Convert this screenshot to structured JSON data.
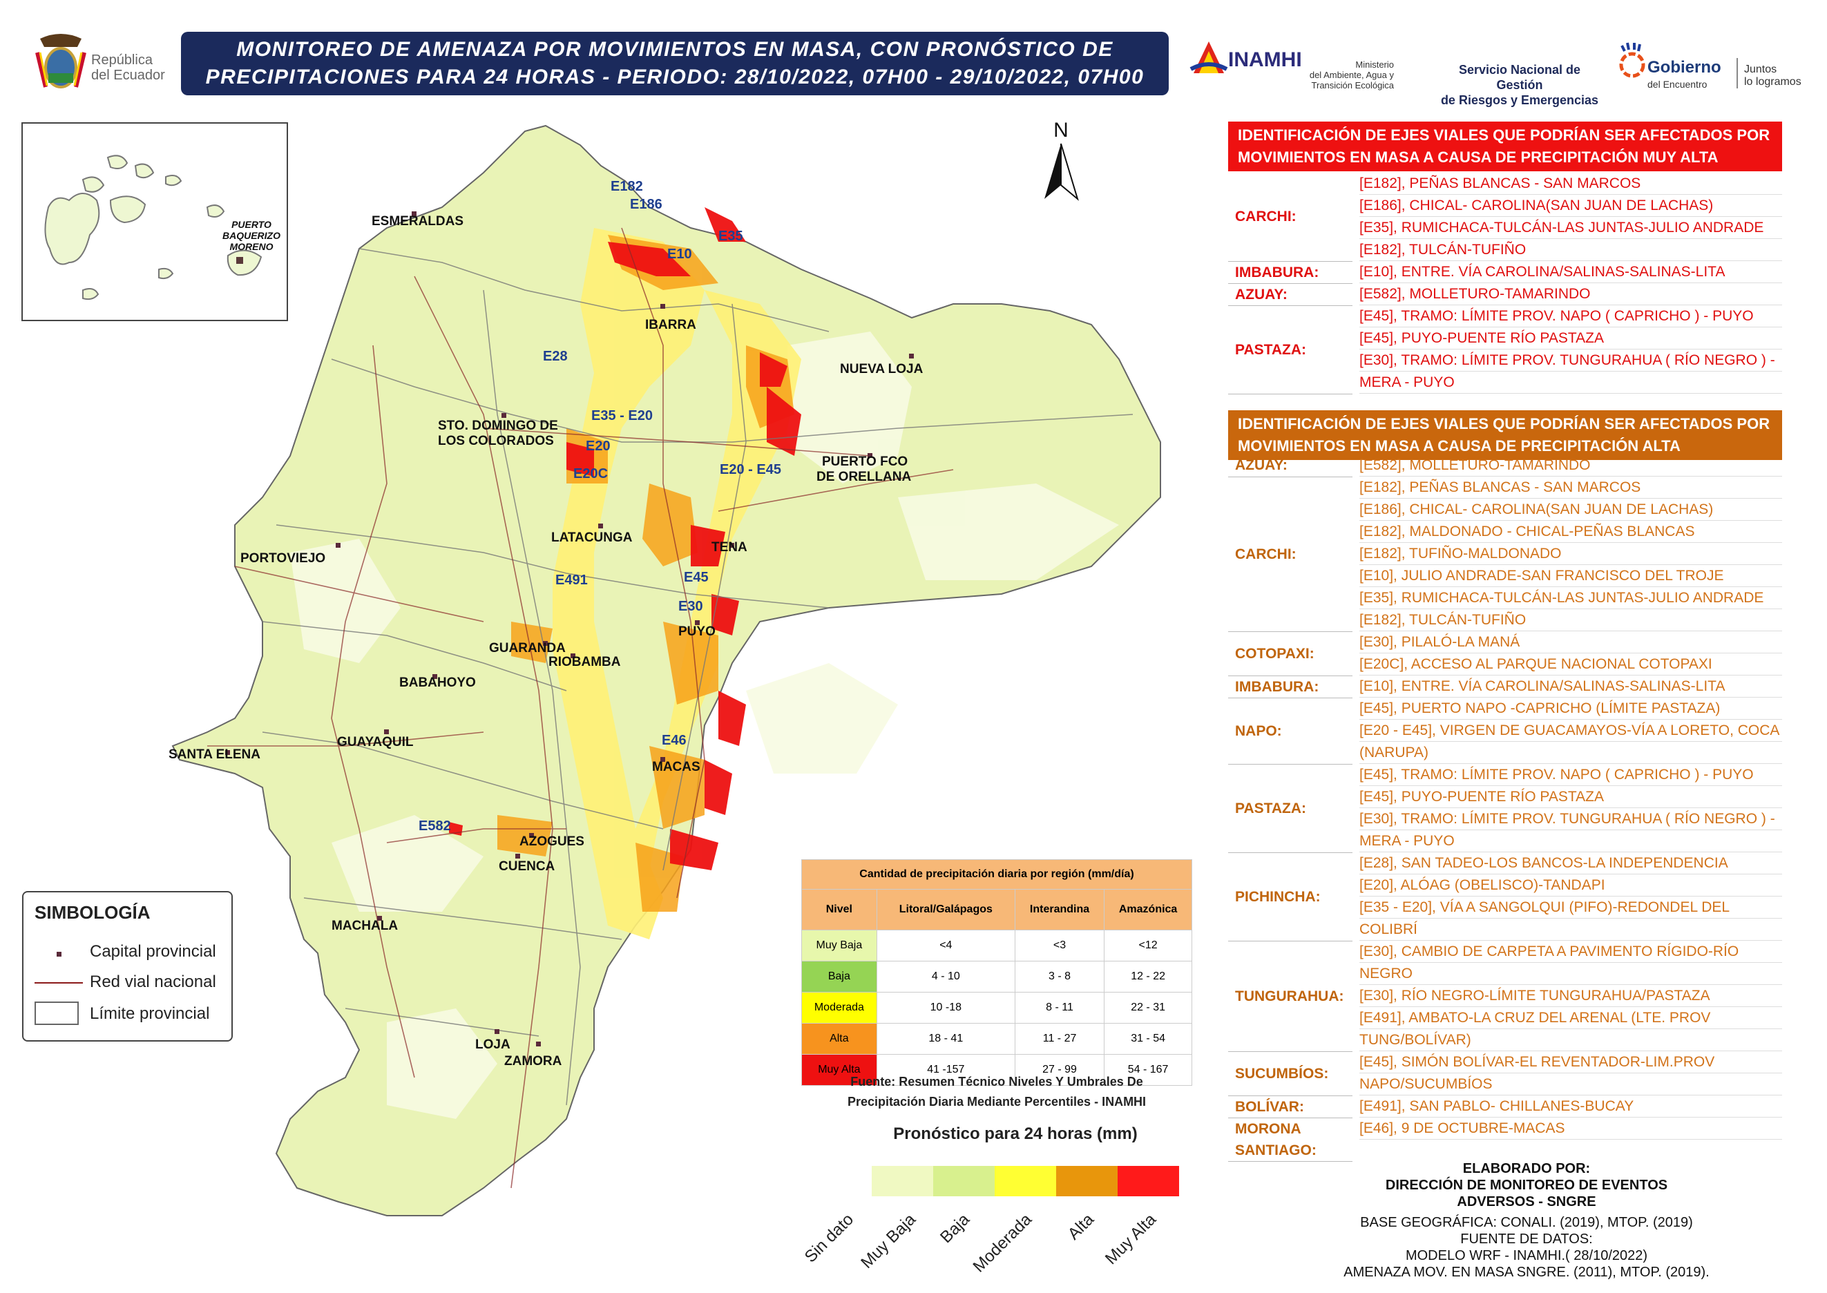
{
  "header": {
    "title_line1": "MONITOREO DE AMENAZA POR MOVIMIENTOS EN MASA, CON PRONÓSTICO DE",
    "title_line2": "PRECIPITACIONES PARA 24 HORAS - PERIODO: 28/10/2022, 07H00 - 29/10/2022, 07H00"
  },
  "logos": {
    "ecuador": [
      "República",
      "del Ecuador"
    ],
    "inamhi": "INAMHI",
    "ministerio": [
      "Ministerio",
      "del Ambiente, Agua y",
      "Transición Ecológica"
    ],
    "sngre": [
      "Servicio Nacional de Gestión",
      "de Riesgos y Emergencias"
    ],
    "gobierno": "Gobierno",
    "gobierno_sub": "del Encuentro",
    "juntos": [
      "Juntos",
      "lo logramos"
    ]
  },
  "map": {
    "north": "N",
    "cities": [
      {
        "name": "ESMERALDAS"
      },
      {
        "name": "IBARRA"
      },
      {
        "name": "NUEVA LOJA"
      },
      {
        "name": "STO. DOMINGO DE"
      },
      {
        "name": "LOS COLORADOS"
      },
      {
        "name": "PUERTO FCO"
      },
      {
        "name": "DE ORELLANA"
      },
      {
        "name": "LATACUNGA"
      },
      {
        "name": "TENA"
      },
      {
        "name": "PORTOVIEJO"
      },
      {
        "name": "PUYO"
      },
      {
        "name": "GUARANDA"
      },
      {
        "name": "RIOBAMBA"
      },
      {
        "name": "BABAHOYO"
      },
      {
        "name": "SANTA ELENA"
      },
      {
        "name": "GUAYAQUIL"
      },
      {
        "name": "MACAS"
      },
      {
        "name": "AZOGUES"
      },
      {
        "name": "CUENCA"
      },
      {
        "name": "MACHALA"
      },
      {
        "name": "LOJA"
      },
      {
        "name": "ZAMORA"
      },
      {
        "name": "PUERTO"
      },
      {
        "name": "BAQUERIZO"
      },
      {
        "name": "MORENO"
      }
    ],
    "roads": [
      "E182",
      "E186",
      "E35",
      "E10",
      "E28",
      "E35 - E20",
      "E20",
      "E20C",
      "E20 - E45",
      "E491",
      "E45",
      "E30",
      "E46",
      "E582"
    ]
  },
  "muy_alta": {
    "header": "IDENTIFICACIÓN DE EJES VIALES QUE PODRÍAN SER AFECTADOS POR MOVIMIENTOS EN MASA A CAUSA DE  PRECIPITACIÓN MUY ALTA",
    "groups": [
      {
        "province": "CARCHI:",
        "roads": [
          "[E182], PEÑAS BLANCAS - SAN MARCOS",
          "[E186], CHICAL- CAROLINA(SAN JUAN DE LACHAS)",
          "[E35], RUMICHACA-TULCÁN-LAS JUNTAS-JULIO ANDRADE",
          "[E182], TULCÁN-TUFIÑO"
        ]
      },
      {
        "province": "IMBABURA:",
        "roads": [
          "[E10], ENTRE. VÍA CAROLINA/SALINAS-SALINAS-LITA"
        ]
      },
      {
        "province": "AZUAY:",
        "roads": [
          "[E582], MOLLETURO-TAMARINDO"
        ]
      },
      {
        "province": "PASTAZA:",
        "roads": [
          "[E45], TRAMO: LÍMITE PROV. NAPO ( CAPRICHO ) - PUYO",
          "[E45], PUYO-PUENTE RÍO PASTAZA",
          "[E30], TRAMO: LÍMITE PROV. TUNGURAHUA ( RÍO NEGRO ) -",
          "MERA - PUYO"
        ]
      }
    ]
  },
  "alta": {
    "header": "IDENTIFICACIÓN DE EJES VIALES QUE PODRÍAN SER AFECTADOS POR MOVIMIENTOS EN MASA A CAUSA DE  PRECIPITACIÓN ALTA",
    "groups": [
      {
        "province": "AZUAY:",
        "roads": [
          "[E582], MOLLETURO-TAMARINDO"
        ]
      },
      {
        "province": "CARCHI:",
        "roads": [
          "[E182], PEÑAS BLANCAS - SAN MARCOS",
          "[E186], CHICAL- CAROLINA(SAN JUAN DE LACHAS)",
          "[E182], MALDONADO - CHICAL-PEÑAS BLANCAS",
          "[E182], TUFIÑO-MALDONADO",
          "[E10], JULIO ANDRADE-SAN FRANCISCO DEL TROJE",
          "[E35], RUMICHACA-TULCÁN-LAS JUNTAS-JULIO ANDRADE",
          "[E182], TULCÁN-TUFIÑO"
        ]
      },
      {
        "province": "COTOPAXI:",
        "roads": [
          "[E30], PILALÓ-LA MANÁ",
          "[E20C], ACCESO AL PARQUE NACIONAL COTOPAXI"
        ]
      },
      {
        "province": "IMBABURA:",
        "roads": [
          "[E10], ENTRE. VÍA CAROLINA/SALINAS-SALINAS-LITA"
        ]
      },
      {
        "province": "NAPO:",
        "roads": [
          "[E45], PUERTO NAPO -CAPRICHO (LÍMITE PASTAZA)",
          "[E20 - E45], VIRGEN DE GUACAMAYOS-VÍA A LORETO, COCA",
          "(NARUPA)"
        ]
      },
      {
        "province": "PASTAZA:",
        "roads": [
          "[E45], TRAMO: LÍMITE PROV. NAPO ( CAPRICHO ) - PUYO",
          "[E45], PUYO-PUENTE RÍO PASTAZA",
          "[E30], TRAMO: LÍMITE PROV. TUNGURAHUA ( RÍO NEGRO ) -",
          "MERA - PUYO"
        ]
      },
      {
        "province": "PICHINCHA:",
        "roads": [
          "[E28], SAN TADEO-LOS BANCOS-LA INDEPENDENCIA",
          "[E20], ALÓAG (OBELISCO)-TANDAPI",
          "[E35 - E20], VÍA A SANGOLQUI (PIFO)-REDONDEL DEL",
          "COLIBRÍ"
        ]
      },
      {
        "province": "TUNGURAHUA:",
        "roads": [
          "[E30], CAMBIO DE CARPETA A PAVIMENTO RÍGIDO-RÍO",
          "NEGRO",
          "[E30], RÍO NEGRO-LÍMITE TUNGURAHUA/PASTAZA",
          "[E491], AMBATO-LA CRUZ DEL ARENAL (LTE. PROV",
          "TUNG/BOLÍVAR)"
        ]
      },
      {
        "province": "SUCUMBÍOS:",
        "roads": [
          "[E45], SIMÓN BOLÍVAR-EL REVENTADOR-LIM.PROV",
          "NAPO/SUCUMBÍOS"
        ]
      },
      {
        "province": "BOLÍVAR:",
        "roads": [
          "[E491], SAN PABLO- CHILLANES-BUCAY"
        ]
      },
      {
        "province": "MORONA SANTIAGO:",
        "roads": [
          "[E46], 9 DE OCTUBRE-MACAS"
        ]
      }
    ]
  },
  "symbology": {
    "title": "SIMBOLOGÍA",
    "items": [
      "Capital provincial",
      "Red vial nacional",
      "Límite provincial"
    ]
  },
  "precip_table": {
    "title": "Cantidad de precipitación diaria por región (mm/día)",
    "columns": [
      "Nivel",
      "Litoral/Galápagos",
      "Interandina",
      "Amazónica"
    ],
    "rows": [
      {
        "level": "Muy Baja",
        "color": "#e7f7ac",
        "values": [
          "<4",
          "<3",
          "<12"
        ]
      },
      {
        "level": "Baja",
        "color": "#95d454",
        "values": [
          "4 - 10",
          "3 - 8",
          "12 - 22"
        ]
      },
      {
        "level": "Moderada",
        "color": "#ffff00",
        "values": [
          "10 -18",
          "8 - 11",
          "22 - 31"
        ]
      },
      {
        "level": "Alta",
        "color": "#f7931e",
        "values": [
          "18 - 41",
          "11 - 27",
          "31 - 54"
        ]
      },
      {
        "level": "Muy Alta",
        "color": "#ee1111",
        "values": [
          "41 -157",
          "27 - 99",
          "54 - 167"
        ]
      }
    ],
    "source": [
      "Fuente: Resumen Técnico Niveles Y Umbrales De",
      "Precipitación Diaria Mediante Percentiles - INAMHI"
    ]
  },
  "forecast_scale": {
    "title": "Pronóstico para 24 horas (mm)",
    "classes": [
      {
        "label": "Sin dato",
        "color": "#f0f9c2"
      },
      {
        "label": "Muy Baja",
        "color": "#d8f08e"
      },
      {
        "label": "Baja",
        "color": "#ffff33"
      },
      {
        "label": "Moderada",
        "color": "#e8960c"
      },
      {
        "label": "Alta",
        "color": "#ff1a1a"
      },
      {
        "label": "Muy Alta",
        "color": ""
      }
    ]
  },
  "credits": {
    "elaborado": "ELABORADO POR:",
    "direccion": [
      "DIRECCIÓN DE MONITOREO DE EVENTOS",
      "ADVERSOS - SNGRE"
    ],
    "base": "BASE GEOGRÁFICA: CONALI. (2019), MTOP. (2019)",
    "fuente": "FUENTE DE DATOS:",
    "modelo": "MODELO WRF - INAMHI.( 28/10/2022)",
    "amenaza": "AMENAZA MOV. EN MASA SNGRE. (2011), MTOP. (2019)."
  }
}
